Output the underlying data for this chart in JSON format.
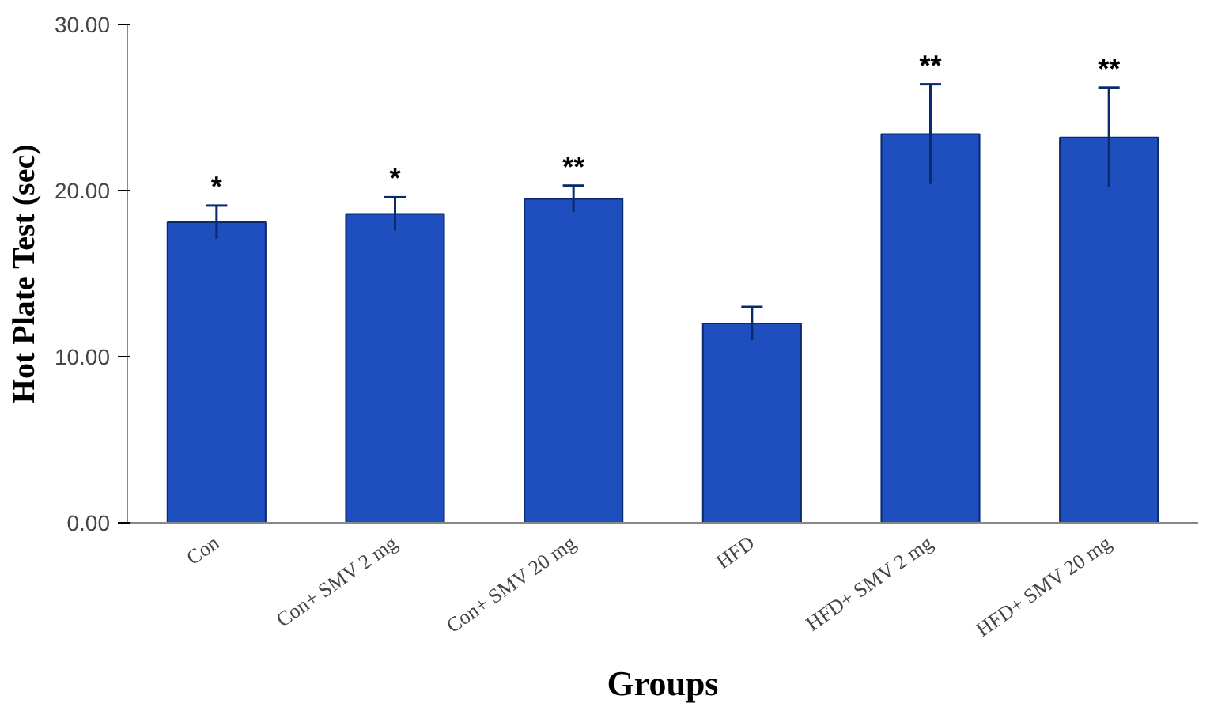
{
  "chart_data": {
    "type": "bar",
    "xlabel": "Groups",
    "ylabel": "Hot Plate Test (sec)",
    "categories": [
      "Con",
      "Con+ SMV 2 mg",
      "Con+ SMV 20 mg",
      "HFD",
      "HFD+ SMV 2 mg",
      "HFD+ SMV 20 mg"
    ],
    "values": [
      18.1,
      18.6,
      19.5,
      12.0,
      23.4,
      23.2
    ],
    "errors": [
      1.0,
      1.0,
      0.8,
      1.0,
      3.0,
      3.0
    ],
    "color": "#1f4fbf",
    "ylim": [
      0,
      30
    ],
    "yticks": [
      {
        "value": 0,
        "label": "0.00"
      },
      {
        "value": 10,
        "label": "10.00"
      },
      {
        "value": 20,
        "label": "20.00"
      },
      {
        "value": 30,
        "label": "30.00"
      }
    ],
    "value_labels": [
      "*",
      "*",
      "**",
      null,
      "**",
      "**"
    ],
    "grid": false
  }
}
